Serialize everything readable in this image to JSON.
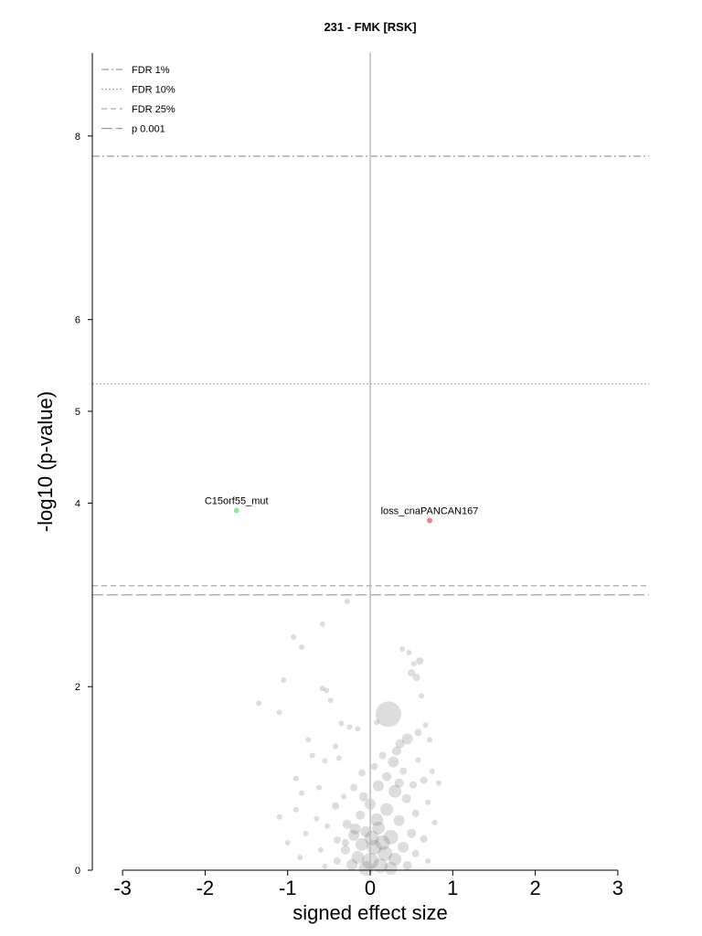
{
  "chart_data": {
    "type": "scatter",
    "title": "231 - FMK [RSK]",
    "xlabel": "signed effect size",
    "ylabel": "-log10 (p-value)",
    "xlim": [
      -3.3,
      3.4
    ],
    "ylim": [
      0,
      8.9
    ],
    "x_ticks": [
      -3,
      -2,
      -1,
      0,
      1,
      2,
      3
    ],
    "y_ticks": [
      0,
      2,
      4,
      5,
      6,
      8
    ],
    "legend_position": "top-left",
    "thresholds": [
      {
        "name": "FDR 1%",
        "y": 7.78,
        "style": "dashdot",
        "color": "#999999"
      },
      {
        "name": "FDR 10%",
        "y": 5.3,
        "style": "dotted",
        "color": "#aaaaaa"
      },
      {
        "name": "FDR 25%",
        "y": 3.1,
        "style": "dashed",
        "color": "#aaaaaa"
      },
      {
        "name": "p 0.001",
        "y": 3.0,
        "style": "longdash",
        "color": "#999999"
      }
    ],
    "highlighted": [
      {
        "label": "C15orf55_mut",
        "x": -1.62,
        "y": 3.92,
        "color": "#99e699"
      },
      {
        "label": "loss_cnaPANCAN167",
        "x": 0.72,
        "y": 3.81,
        "color": "#f08090"
      }
    ],
    "points": [
      {
        "x": -0.28,
        "y": 2.93,
        "size": 3
      },
      {
        "x": -0.58,
        "y": 2.68,
        "size": 3
      },
      {
        "x": -0.93,
        "y": 2.54,
        "size": 3
      },
      {
        "x": -0.83,
        "y": 2.43,
        "size": 3
      },
      {
        "x": 0.39,
        "y": 2.41,
        "size": 3
      },
      {
        "x": 0.47,
        "y": 2.37,
        "size": 3
      },
      {
        "x": 0.6,
        "y": 2.28,
        "size": 4
      },
      {
        "x": 0.53,
        "y": 2.25,
        "size": 3
      },
      {
        "x": 0.5,
        "y": 2.15,
        "size": 4
      },
      {
        "x": 0.56,
        "y": 2.1,
        "size": 4
      },
      {
        "x": -1.05,
        "y": 2.07,
        "size": 3
      },
      {
        "x": -0.58,
        "y": 1.98,
        "size": 3
      },
      {
        "x": -0.53,
        "y": 1.96,
        "size": 3
      },
      {
        "x": -0.48,
        "y": 1.85,
        "size": 3
      },
      {
        "x": 0.62,
        "y": 1.9,
        "size": 3
      },
      {
        "x": -1.35,
        "y": 1.82,
        "size": 3
      },
      {
        "x": -1.1,
        "y": 1.72,
        "size": 3
      },
      {
        "x": 0.22,
        "y": 1.7,
        "size": 14
      },
      {
        "x": 0.08,
        "y": 1.61,
        "size": 3
      },
      {
        "x": -0.35,
        "y": 1.6,
        "size": 3
      },
      {
        "x": -0.25,
        "y": 1.56,
        "size": 3
      },
      {
        "x": -0.15,
        "y": 1.54,
        "size": 3
      },
      {
        "x": 0.67,
        "y": 1.58,
        "size": 3
      },
      {
        "x": 0.58,
        "y": 1.5,
        "size": 4
      },
      {
        "x": 0.45,
        "y": 1.43,
        "size": 6
      },
      {
        "x": 0.36,
        "y": 1.38,
        "size": 5
      },
      {
        "x": 0.72,
        "y": 1.42,
        "size": 3
      },
      {
        "x": -0.75,
        "y": 1.42,
        "size": 3
      },
      {
        "x": -0.42,
        "y": 1.35,
        "size": 3
      },
      {
        "x": 0.32,
        "y": 1.3,
        "size": 5
      },
      {
        "x": 0.15,
        "y": 1.25,
        "size": 4
      },
      {
        "x": -0.7,
        "y": 1.25,
        "size": 3
      },
      {
        "x": 0.28,
        "y": 1.18,
        "size": 6
      },
      {
        "x": 0.05,
        "y": 1.13,
        "size": 4
      },
      {
        "x": -0.38,
        "y": 1.22,
        "size": 3
      },
      {
        "x": 0.58,
        "y": 1.2,
        "size": 3
      },
      {
        "x": -0.55,
        "y": 1.19,
        "size": 3
      },
      {
        "x": 0.75,
        "y": 1.08,
        "size": 3
      },
      {
        "x": 0.4,
        "y": 1.08,
        "size": 4
      },
      {
        "x": -0.1,
        "y": 1.06,
        "size": 4
      },
      {
        "x": 0.2,
        "y": 1.02,
        "size": 5
      },
      {
        "x": -0.9,
        "y": 1.0,
        "size": 3
      },
      {
        "x": 0.65,
        "y": 0.98,
        "size": 4
      },
      {
        "x": 0.52,
        "y": 0.93,
        "size": 4
      },
      {
        "x": 0.1,
        "y": 0.92,
        "size": 6
      },
      {
        "x": -0.2,
        "y": 0.9,
        "size": 4
      },
      {
        "x": -0.62,
        "y": 0.9,
        "size": 3
      },
      {
        "x": 0.83,
        "y": 0.95,
        "size": 3
      },
      {
        "x": 0.3,
        "y": 0.86,
        "size": 7
      },
      {
        "x": -0.83,
        "y": 0.84,
        "size": 3
      },
      {
        "x": -0.32,
        "y": 0.8,
        "size": 3
      },
      {
        "x": 0.44,
        "y": 0.78,
        "size": 5
      },
      {
        "x": 0.0,
        "y": 0.72,
        "size": 6
      },
      {
        "x": 0.7,
        "y": 0.74,
        "size": 3
      },
      {
        "x": -0.42,
        "y": 0.7,
        "size": 4
      },
      {
        "x": -0.9,
        "y": 0.66,
        "size": 3
      },
      {
        "x": 0.2,
        "y": 0.66,
        "size": 7
      },
      {
        "x": 0.55,
        "y": 0.62,
        "size": 4
      },
      {
        "x": -1.1,
        "y": 0.58,
        "size": 3
      },
      {
        "x": -0.12,
        "y": 0.6,
        "size": 5
      },
      {
        "x": -0.65,
        "y": 0.56,
        "size": 3
      },
      {
        "x": 0.35,
        "y": 0.54,
        "size": 6
      },
      {
        "x": 0.78,
        "y": 0.52,
        "size": 3
      },
      {
        "x": -0.28,
        "y": 0.5,
        "size": 5
      },
      {
        "x": -0.52,
        "y": 0.48,
        "size": 3
      },
      {
        "x": 0.1,
        "y": 0.46,
        "size": 7
      },
      {
        "x": -0.05,
        "y": 0.42,
        "size": 6
      },
      {
        "x": 0.5,
        "y": 0.4,
        "size": 5
      },
      {
        "x": -0.78,
        "y": 0.4,
        "size": 3
      },
      {
        "x": -0.2,
        "y": 0.38,
        "size": 6
      },
      {
        "x": 0.25,
        "y": 0.36,
        "size": 8
      },
      {
        "x": 0.65,
        "y": 0.34,
        "size": 4
      },
      {
        "x": -0.4,
        "y": 0.33,
        "size": 4
      },
      {
        "x": -1.0,
        "y": 0.3,
        "size": 3
      },
      {
        "x": -0.1,
        "y": 0.28,
        "size": 7
      },
      {
        "x": 0.05,
        "y": 0.25,
        "size": 8
      },
      {
        "x": 0.4,
        "y": 0.25,
        "size": 6
      },
      {
        "x": -0.3,
        "y": 0.22,
        "size": 5
      },
      {
        "x": -0.6,
        "y": 0.22,
        "size": 3
      },
      {
        "x": 0.18,
        "y": 0.18,
        "size": 8
      },
      {
        "x": 0.55,
        "y": 0.18,
        "size": 4
      },
      {
        "x": -0.15,
        "y": 0.14,
        "size": 7
      },
      {
        "x": -0.85,
        "y": 0.14,
        "size": 3
      },
      {
        "x": 0.3,
        "y": 0.12,
        "size": 7
      },
      {
        "x": 0.0,
        "y": 0.1,
        "size": 9
      },
      {
        "x": -0.4,
        "y": 0.1,
        "size": 4
      },
      {
        "x": 0.7,
        "y": 0.1,
        "size": 3
      },
      {
        "x": -0.22,
        "y": 0.06,
        "size": 6
      },
      {
        "x": 0.12,
        "y": 0.05,
        "size": 8
      },
      {
        "x": 0.45,
        "y": 0.05,
        "size": 5
      },
      {
        "x": -0.55,
        "y": 0.04,
        "size": 3
      },
      {
        "x": -0.05,
        "y": 0.02,
        "size": 8
      },
      {
        "x": 0.25,
        "y": 0.02,
        "size": 7
      },
      {
        "x": -0.3,
        "y": 0.3,
        "size": 4
      },
      {
        "x": 0.08,
        "y": 0.55,
        "size": 7
      },
      {
        "x": -0.08,
        "y": 0.8,
        "size": 5
      },
      {
        "x": 0.15,
        "y": 0.3,
        "size": 8
      },
      {
        "x": 0.35,
        "y": 0.95,
        "size": 5
      },
      {
        "x": -0.18,
        "y": 0.45,
        "size": 6
      },
      {
        "x": 0.02,
        "y": 0.35,
        "size": 8
      }
    ]
  }
}
